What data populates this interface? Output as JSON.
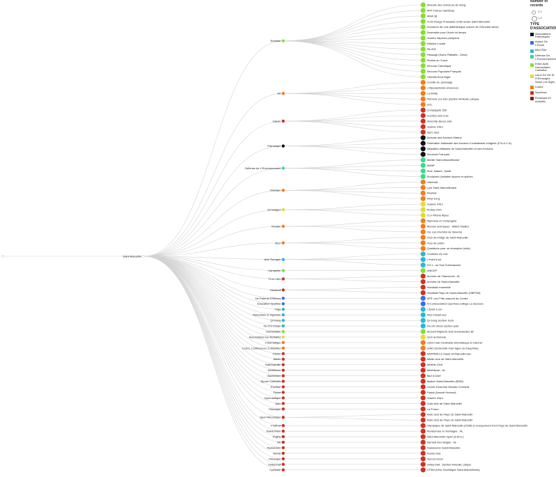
{
  "root": {
    "label": "",
    "color": "#dddddd"
  },
  "hub": {
    "label": "Saint-Marcellin",
    "color": "#ffffff"
  },
  "type_colors": {
    "patriotique": "#111111",
    "ecole": "#3a6ee8",
    "bienetre": "#2bb6d8",
    "environnement": "#33dd88",
    "entraide": "#88dd33",
    "echanges": "#dddd33",
    "loisirs": "#f07d1e",
    "sportives": "#cc3322",
    "ages": "#8b1a1a"
  },
  "categories": [
    {
      "name": "Entraide",
      "type": "entraide",
      "leaves": [
        "Amicale des donneurs de Sang",
        "APF France Handicap",
        "ARIA 38",
        "Croix Rouge Française Unité locale Saint-Marcellin",
        "Donneurs de voix (bibliothèque sonore de Grenoble-Isère)",
        "Ensemble pour l'Avoir du temps",
        "Jeunes Sapeurs pompiers",
        "Mission Locale",
        "PA-ISS",
        "Passage (Soins Palliatifs - Deuil)",
        "Restos du Coeur",
        "Secours Catholique",
        "Secours Populaire Français",
        "YAKWA Nord Niger"
      ]
    },
    {
      "name": "Art",
      "type": "loisirs",
      "leaves": [
        "Comité de Jumelage",
        "L'Hippopotame amoureux",
        "La Wrille",
        "Peinture sur soie (section Amicale Laïque)",
        "UCL"
      ]
    },
    {
      "name": "Danse",
      "type": "sportives",
      "leaves": [
        "Compagnie 158",
        "Country and Cow",
        "Diversity dance club",
        "Jeanne d'Arc",
        "Syl'n Jazz"
      ]
    },
    {
      "name": "Patriotique",
      "type": "patriotique",
      "leaves": [
        "Amicale des Anciens Marins",
        "Fédération Nationale des Anciens Combattants d'Algérie (F.N.A.C.A)",
        "Médailles Militaires de Saint-Marcellin et ses environs",
        "Souvenir Français"
      ]
    },
    {
      "name": "Défense de L'Environnement",
      "type": "environnement",
      "leaves": [
        "Abeille Saint-Marcellinoise",
        "AMAP",
        "Noix, Nature, Santé",
        "Roulavélo (mobilité douces et actives"
      ]
    },
    {
      "name": "Musique",
      "type": "loisirs",
      "leaves": [
        "Interlude",
        "Lyre Saint-Marcellinoise",
        "Musilud",
        "Vinyl song"
      ]
    },
    {
      "name": "Jumelages",
      "type": "echanges",
      "leaves": [
        "Jeanne d'Arc",
        "Rotary Club",
        "CLV Rhône Alpes"
      ]
    },
    {
      "name": "Théâtre",
      "type": "loisirs",
      "leaves": [
        "Alphonse et Compagnie",
        "Atomes scéniques - Mélch théâtre",
        "Cie Les chemins de traverse"
      ]
    },
    {
      "name": "Jeux",
      "type": "loisirs",
      "leaves": [
        "Club de bridge de Saint-Marcellin",
        "Jeux de potes",
        "Questions pour un champion (club)"
      ]
    },
    {
      "name": "Arts Thérapie",
      "type": "bienetre",
      "leaves": [
        "Couleurs d'y voir",
        "L'éveil à soi",
        "S.E.L. du Sud Grésivaudan"
      ]
    },
    {
      "name": "Cantarelle",
      "type": "entraide",
      "leaves": [
        "UNICEF"
      ]
    },
    {
      "name": "Tir à L'Arc",
      "type": "sportives",
      "leaves": [
        "Archers de Claresvord : AL",
        "Archers de Saint-Marcellin"
      ]
    },
    {
      "name": "Handball",
      "type": "sportives",
      "leaves": [
        "Handball ensemble",
        "Handball Pays de Saint-Marcellin (HBPSM)"
      ]
    },
    {
      "name": "De Parents D'Élèves",
      "type": "ecole",
      "leaves": [
        "APE Les P'tits crayons du Centre"
      ]
    },
    {
      "name": "Éducation Sportive",
      "type": "ecole",
      "leaves": [
        "A.S (Association sportive) collège La Savoure"
      ]
    },
    {
      "name": "Yoga",
      "type": "bienetre",
      "leaves": [
        "L'Éveil à soi"
      ]
    },
    {
      "name": "Relaxation et Hypnose",
      "type": "bienetre",
      "leaves": [
        "Mon instant ses"
      ]
    },
    {
      "name": "Qi Gong",
      "type": "bienetre",
      "leaves": [
        "Qi Gong section Judo"
      ]
    },
    {
      "name": "Tai Chi Chuan",
      "type": "bienetre",
      "leaves": [
        "Tai chi chuan section judo"
      ]
    },
    {
      "name": "Humanitaire",
      "type": "entraide",
      "leaves": [
        "Accueil Migrants Sud Grésivaudan 38"
      ]
    },
    {
      "name": "Associations De Retraités",
      "type": "echanges",
      "leaves": [
        "Club la Romelé"
      ]
    },
    {
      "name": "Informatique",
      "type": "loisirs",
      "leaves": [
        "CEDI Club d'entraide informatique et internet"
      ]
    },
    {
      "name": "Cours, Conférences Culturelles",
      "type": "loisirs",
      "leaves": [
        "UIAD (Université Inter-âges du Dauphiné)"
      ]
    },
    {
      "name": "Pêche",
      "type": "sportives",
      "leaves": [
        "AAPPMA La Gaule St-Marcellinoise"
      ]
    },
    {
      "name": "Aikido",
      "type": "sportives",
      "leaves": [
        "Aikido club de Saint-Marcellin"
      ]
    },
    {
      "name": "Haltérophilie",
      "type": "sportives",
      "leaves": [
        "Athlétic Club"
      ]
    },
    {
      "name": "Athlétisme",
      "type": "sportives",
      "leaves": [
        "Athlétisme : AL"
      ]
    },
    {
      "name": "Badminton",
      "type": "sportives",
      "leaves": [
        "Bad à Donf"
      ]
    },
    {
      "name": "Sports Collectifs",
      "type": "sportives",
      "leaves": [
        "Basket Saint-Marcellin (BSM)"
      ]
    },
    {
      "name": "Escrime",
      "type": "sportives",
      "leaves": [
        "Cercle d'escrime Nicolas Corrdera"
      ]
    },
    {
      "name": "Futsal",
      "type": "sportives",
      "leaves": [
        "Futsal (Nouvel Horizon)"
      ]
    },
    {
      "name": "Gymnastique",
      "type": "sportives",
      "leaves": [
        "Jeanne d'Arc"
      ]
    },
    {
      "name": "Judo",
      "type": "sportives",
      "leaves": [
        "Judo club de Saint-Marcellin"
      ]
    },
    {
      "name": "Pétanque",
      "type": "sportives",
      "leaves": [
        "La Forum"
      ]
    },
    {
      "name": "Sport Mécanique",
      "type": "sportives",
      "leaves": [
        "Moto club du Pays de Saint-Marcellin",
        "Moto club du Pays de Saint-Marcellin"
      ]
    },
    {
      "name": "Football",
      "type": "sportives",
      "leaves": [
        "Olympique de Saint-Marcellin (OSM) & Groupement Foot Pays de Saint-Marcellin"
      ]
    },
    {
      "name": "Randonnée",
      "type": "sportives",
      "leaves": [
        "Randonnée et montagne : AL"
      ]
    },
    {
      "name": "Rugby",
      "type": "sportives",
      "leaves": [
        "Saint-Marcellin Sport (S.M.S.)"
      ]
    },
    {
      "name": "Ski",
      "type": "sportives",
      "leaves": [
        "Samedi des Neiges : AL"
      ]
    },
    {
      "name": "Taekwondo",
      "type": "sportives",
      "leaves": [
        "Taekwondo Saint-Marcellin"
      ]
    },
    {
      "name": "Tennis",
      "type": "sportives",
      "leaves": [
        "Tennis club"
      ]
    },
    {
      "name": "Pétanque",
      "type": "sportives",
      "leaves": [
        "Venors Ernol"
      ]
    },
    {
      "name": "Volley-ball",
      "type": "sportives",
      "leaves": [
        "Volley-ball : Section Amicale Laïque"
      ]
    },
    {
      "name": "Cyclisme",
      "type": "sportives",
      "leaves": [
        "VTSM (Vélo Touristique Saint-Marcellinois)"
      ]
    }
  ],
  "legend": {
    "records_title": "Number of records",
    "size_values": [
      "2.0",
      "1.0"
    ],
    "type_title": "TYPE D'ASSOCIATION",
    "types": [
      {
        "key": "patriotique",
        "label": "Associations Patriotiques"
      },
      {
        "key": "ecole",
        "label": "Autour De L'École"
      },
      {
        "key": "bienetre",
        "label": "Bien Être"
      },
      {
        "key": "environnement",
        "label": "Défense De L'Environnement"
      },
      {
        "key": "entraide",
        "label": "Entre-Aide, Humanitaire, Caritative"
      },
      {
        "key": "echanges",
        "label": "Lieux De Vie Et D'Echanges Selon Les Âges"
      },
      {
        "key": "loisirs",
        "label": "Loisirs"
      },
      {
        "key": "sportives",
        "label": "Sportives"
      },
      {
        "key": "ages",
        "label": "Échanges Et Activités"
      }
    ]
  }
}
